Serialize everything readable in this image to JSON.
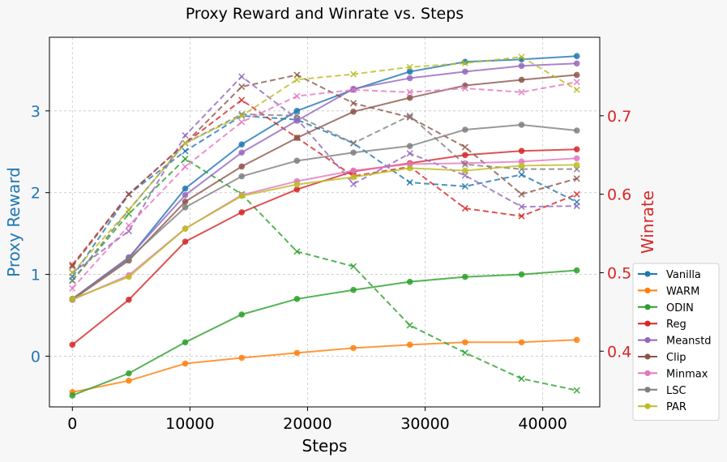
{
  "colors": {
    "left_axis": "#1f77b4",
    "right_axis": "#d62728",
    "background": "#f7f7f7",
    "plot_background": "#ffffff",
    "grid": "#c8c8c8"
  },
  "chart_data": {
    "type": "line",
    "title": "Proxy Reward and Winrate vs. Steps",
    "xlabel": "Steps",
    "ylabel_left": "Proxy Reward",
    "ylabel_right": "Winrate",
    "xlim": [
      -1950,
      44850
    ],
    "ylim_left": [
      -0.62,
      3.9
    ],
    "ylim_right": [
      0.329,
      0.8
    ],
    "x_ticks": [
      0,
      10000,
      20000,
      30000,
      40000
    ],
    "y_left_ticks": [
      0,
      1,
      2,
      3
    ],
    "y_right_ticks": [
      0.4,
      0.5,
      0.6,
      0.7
    ],
    "grid": true,
    "legend_position": "lower-right (outside plot)",
    "x": [
      0,
      4800,
      9600,
      14400,
      19100,
      23900,
      28700,
      33400,
      38200,
      42900
    ],
    "series": [
      {
        "name": "Vanilla",
        "color": "#1f77b4",
        "proxy_reward": [
          0.7,
          1.2,
          2.05,
          2.59,
          3.0,
          3.26,
          3.48,
          3.6,
          3.63,
          3.67
        ],
        "winrate": [
          0.495,
          0.6,
          0.655,
          0.7,
          0.695,
          0.665,
          0.615,
          0.61,
          0.625,
          0.59
        ]
      },
      {
        "name": "WARM",
        "color": "#ff7f0e",
        "proxy_reward": [
          -0.44,
          -0.3,
          -0.09,
          -0.02,
          0.04,
          0.1,
          0.14,
          0.17,
          0.17,
          0.2
        ]
      },
      {
        "name": "ODIN",
        "color": "#2ca02c",
        "proxy_reward": [
          -0.48,
          -0.21,
          0.17,
          0.51,
          0.7,
          0.81,
          0.91,
          0.97,
          1.0,
          1.05
        ],
        "winrate": [
          0.49,
          0.575,
          0.645,
          0.6,
          0.527,
          0.508,
          0.433,
          0.398,
          0.365,
          0.35
        ]
      },
      {
        "name": "Reg",
        "color": "#d62728",
        "proxy_reward": [
          0.14,
          0.69,
          1.4,
          1.76,
          2.04,
          2.26,
          2.36,
          2.46,
          2.51,
          2.53
        ],
        "winrate": [
          0.51,
          0.6,
          0.665,
          0.72,
          0.672,
          0.623,
          0.635,
          0.582,
          0.572,
          0.6
        ]
      },
      {
        "name": "Meanstd",
        "color": "#9467bd",
        "proxy_reward": [
          0.7,
          1.21,
          1.97,
          2.49,
          2.88,
          3.27,
          3.4,
          3.48,
          3.55,
          3.58
        ],
        "winrate": [
          0.5,
          0.553,
          0.675,
          0.75,
          0.696,
          0.613,
          0.652,
          0.624,
          0.584,
          0.585
        ]
      },
      {
        "name": "Clip",
        "color": "#8c564b",
        "proxy_reward": [
          0.69,
          1.17,
          1.89,
          2.32,
          2.67,
          2.99,
          3.16,
          3.31,
          3.38,
          3.44
        ],
        "winrate": [
          0.508,
          0.6,
          0.665,
          0.737,
          0.752,
          0.716,
          0.698,
          0.66,
          0.6,
          0.62
        ]
      },
      {
        "name": "Minmax",
        "color": "#e377c2",
        "proxy_reward": [
          0.69,
          0.99,
          1.56,
          1.97,
          2.14,
          2.27,
          2.35,
          2.36,
          2.38,
          2.42
        ],
        "winrate": [
          0.48,
          0.56,
          0.635,
          0.692,
          0.725,
          0.733,
          0.73,
          0.735,
          0.73,
          0.743
        ]
      },
      {
        "name": "LSC",
        "color": "#7f7f7f",
        "proxy_reward": [
          0.7,
          1.19,
          1.82,
          2.2,
          2.39,
          2.49,
          2.57,
          2.77,
          2.83,
          2.76
        ],
        "winrate": [
          0.49,
          0.58,
          0.665,
          0.702,
          0.7,
          0.665,
          0.7,
          0.638,
          0.632,
          0.632
        ]
      },
      {
        "name": "PAR",
        "color": "#bcbd22",
        "proxy_reward": [
          0.7,
          0.97,
          1.56,
          1.96,
          2.1,
          2.19,
          2.3,
          2.27,
          2.33,
          2.34
        ],
        "winrate": [
          0.5,
          0.58,
          0.665,
          0.7,
          0.746,
          0.753,
          0.762,
          0.767,
          0.775,
          0.733
        ]
      }
    ]
  }
}
